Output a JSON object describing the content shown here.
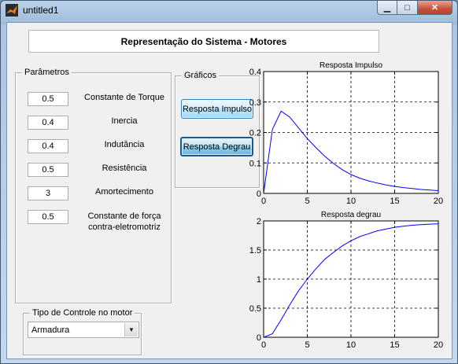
{
  "window": {
    "title": "untitled1"
  },
  "header": {
    "title": "Representação do Sistema - Motores"
  },
  "parametros": {
    "title": "Parâmetros",
    "fields": [
      {
        "value": "0.5",
        "label": "Constante de Torque"
      },
      {
        "value": "0.4",
        "label": "Inercia"
      },
      {
        "value": "0.4",
        "label": "Indutância"
      },
      {
        "value": "0.5",
        "label": "Resistência"
      },
      {
        "value": "3",
        "label": "Amortecimento"
      },
      {
        "value": "0.5",
        "label": "Constante de força",
        "label2": "contra-eletromotriz"
      }
    ]
  },
  "graficos": {
    "title": "Gráficos",
    "impulse_button": "Resposta Impulso",
    "step_button": "Resposta Degrau"
  },
  "controle": {
    "title": "Tipo de Controle no motor",
    "selected": "Armadura"
  },
  "chart_data": [
    {
      "type": "line",
      "title": "Resposta Impulso",
      "xlim": [
        0,
        20
      ],
      "ylim": [
        0,
        0.4
      ],
      "xticks": [
        "0",
        "5",
        "10",
        "15",
        "20"
      ],
      "yticks": [
        "0",
        "0.1",
        "0.2",
        "0.3",
        "0.4"
      ],
      "grid": true,
      "color": "#0000ff",
      "x": [
        0,
        1,
        2,
        3,
        4,
        5,
        6,
        7,
        8,
        9,
        10,
        11,
        12,
        13,
        14,
        15,
        16,
        17,
        18,
        19,
        20
      ],
      "y": [
        0,
        0.21,
        0.27,
        0.25,
        0.215,
        0.18,
        0.15,
        0.122,
        0.098,
        0.078,
        0.062,
        0.05,
        0.041,
        0.034,
        0.028,
        0.023,
        0.019,
        0.016,
        0.013,
        0.011,
        0.009
      ]
    },
    {
      "type": "line",
      "title": "Resposta degrau",
      "xlim": [
        0,
        20
      ],
      "ylim": [
        0,
        2
      ],
      "xticks": [
        "0",
        "5",
        "10",
        "15",
        "20"
      ],
      "yticks": [
        "0",
        "0.5",
        "1",
        "1.5",
        "2"
      ],
      "grid": true,
      "color": "#0000ff",
      "x": [
        0,
        1,
        2,
        3,
        4,
        5,
        6,
        7,
        8,
        9,
        10,
        11,
        12,
        13,
        14,
        15,
        16,
        17,
        18,
        19,
        20
      ],
      "y": [
        0,
        0.06,
        0.3,
        0.56,
        0.8,
        1.0,
        1.18,
        1.34,
        1.46,
        1.57,
        1.66,
        1.73,
        1.78,
        1.83,
        1.86,
        1.89,
        1.91,
        1.925,
        1.935,
        1.945,
        1.95
      ]
    }
  ]
}
